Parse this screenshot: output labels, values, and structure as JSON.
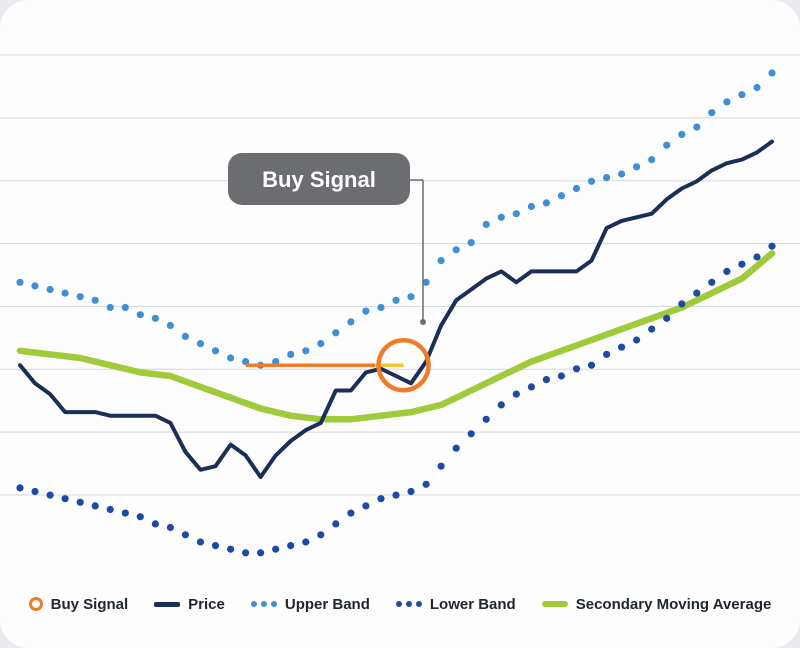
{
  "chart_data": {
    "type": "line",
    "title": "",
    "xlabel": "",
    "ylabel": "",
    "grid": true,
    "legend_position": "bottom",
    "annotation": {
      "label": "Buy Signal",
      "x": 25.5,
      "y": 0.9
    },
    "signal_line": {
      "x_start": 15,
      "x_end": 25.5,
      "y": 0.9
    },
    "series": [
      {
        "name": "Price",
        "style": "solid",
        "color": "#1a2e57",
        "points": [
          [
            0,
            0.9
          ],
          [
            1,
            0.4
          ],
          [
            2,
            0.1
          ],
          [
            3,
            -0.4
          ],
          [
            4,
            -0.4
          ],
          [
            5,
            -0.4
          ],
          [
            6,
            -0.5
          ],
          [
            7,
            -0.5
          ],
          [
            8,
            -0.5
          ],
          [
            9,
            -0.5
          ],
          [
            10,
            -0.7
          ],
          [
            11,
            -1.5
          ],
          [
            12,
            -2.0
          ],
          [
            13,
            -1.9
          ],
          [
            14,
            -1.3
          ],
          [
            15,
            -1.6
          ],
          [
            16,
            -2.2
          ],
          [
            17,
            -1.6
          ],
          [
            18,
            -1.2
          ],
          [
            19,
            -0.9
          ],
          [
            20,
            -0.7
          ],
          [
            21,
            0.2
          ],
          [
            22,
            0.2
          ],
          [
            23,
            0.7
          ],
          [
            24,
            0.8
          ],
          [
            25,
            0.6
          ],
          [
            26,
            0.4
          ],
          [
            27,
            1.0
          ],
          [
            28,
            2.0
          ],
          [
            29,
            2.7
          ],
          [
            30,
            3.0
          ],
          [
            31,
            3.3
          ],
          [
            32,
            3.5
          ],
          [
            33,
            3.2
          ],
          [
            34,
            3.5
          ],
          [
            35,
            3.5
          ],
          [
            36,
            3.5
          ],
          [
            37,
            3.5
          ],
          [
            38,
            3.8
          ],
          [
            39,
            4.7
          ],
          [
            40,
            4.9
          ],
          [
            41,
            5.0
          ],
          [
            42,
            5.1
          ],
          [
            43,
            5.5
          ],
          [
            44,
            5.8
          ],
          [
            45,
            6.0
          ],
          [
            46,
            6.3
          ],
          [
            47,
            6.5
          ],
          [
            48,
            6.6
          ],
          [
            49,
            6.8
          ],
          [
            50,
            7.1
          ]
        ]
      },
      {
        "name": "Upper Band",
        "style": "dotted",
        "color": "#3e8fd6",
        "points": [
          [
            0,
            3.2
          ],
          [
            1,
            3.1
          ],
          [
            2,
            3.0
          ],
          [
            3,
            2.9
          ],
          [
            4,
            2.8
          ],
          [
            5,
            2.7
          ],
          [
            6,
            2.5
          ],
          [
            7,
            2.5
          ],
          [
            8,
            2.3
          ],
          [
            9,
            2.2
          ],
          [
            10,
            2.0
          ],
          [
            11,
            1.7
          ],
          [
            12,
            1.5
          ],
          [
            13,
            1.3
          ],
          [
            14,
            1.1
          ],
          [
            15,
            1.0
          ],
          [
            16,
            0.9
          ],
          [
            17,
            1.0
          ],
          [
            18,
            1.2
          ],
          [
            19,
            1.3
          ],
          [
            20,
            1.5
          ],
          [
            21,
            1.8
          ],
          [
            22,
            2.1
          ],
          [
            23,
            2.4
          ],
          [
            24,
            2.5
          ],
          [
            25,
            2.7
          ],
          [
            26,
            2.8
          ],
          [
            27,
            3.2
          ],
          [
            28,
            3.8
          ],
          [
            29,
            4.1
          ],
          [
            30,
            4.3
          ],
          [
            31,
            4.8
          ],
          [
            32,
            5.0
          ],
          [
            33,
            5.1
          ],
          [
            34,
            5.3
          ],
          [
            35,
            5.4
          ],
          [
            36,
            5.6
          ],
          [
            37,
            5.8
          ],
          [
            38,
            6.0
          ],
          [
            39,
            6.1
          ],
          [
            40,
            6.2
          ],
          [
            41,
            6.4
          ],
          [
            42,
            6.6
          ],
          [
            43,
            7.0
          ],
          [
            44,
            7.3
          ],
          [
            45,
            7.5
          ],
          [
            46,
            7.9
          ],
          [
            47,
            8.2
          ],
          [
            48,
            8.4
          ],
          [
            49,
            8.6
          ],
          [
            50,
            9.0
          ]
        ]
      },
      {
        "name": "Lower Band",
        "style": "dotted",
        "color": "#1f4aa3",
        "points": [
          [
            0,
            -2.5
          ],
          [
            1,
            -2.6
          ],
          [
            2,
            -2.7
          ],
          [
            3,
            -2.8
          ],
          [
            4,
            -2.9
          ],
          [
            5,
            -3.0
          ],
          [
            6,
            -3.1
          ],
          [
            7,
            -3.2
          ],
          [
            8,
            -3.3
          ],
          [
            9,
            -3.5
          ],
          [
            10,
            -3.6
          ],
          [
            11,
            -3.8
          ],
          [
            12,
            -4.0
          ],
          [
            13,
            -4.1
          ],
          [
            14,
            -4.2
          ],
          [
            15,
            -4.3
          ],
          [
            16,
            -4.3
          ],
          [
            17,
            -4.2
          ],
          [
            18,
            -4.1
          ],
          [
            19,
            -4.0
          ],
          [
            20,
            -3.8
          ],
          [
            21,
            -3.5
          ],
          [
            22,
            -3.2
          ],
          [
            23,
            -3.0
          ],
          [
            24,
            -2.8
          ],
          [
            25,
            -2.7
          ],
          [
            26,
            -2.6
          ],
          [
            27,
            -2.4
          ],
          [
            28,
            -1.9
          ],
          [
            29,
            -1.4
          ],
          [
            30,
            -1.0
          ],
          [
            31,
            -0.6
          ],
          [
            32,
            -0.2
          ],
          [
            33,
            0.1
          ],
          [
            34,
            0.3
          ],
          [
            35,
            0.5
          ],
          [
            36,
            0.6
          ],
          [
            37,
            0.8
          ],
          [
            38,
            0.9
          ],
          [
            39,
            1.2
          ],
          [
            40,
            1.4
          ],
          [
            41,
            1.6
          ],
          [
            42,
            1.9
          ],
          [
            43,
            2.2
          ],
          [
            44,
            2.6
          ],
          [
            45,
            2.9
          ],
          [
            46,
            3.2
          ],
          [
            47,
            3.5
          ],
          [
            48,
            3.7
          ],
          [
            49,
            3.9
          ],
          [
            50,
            4.2
          ]
        ]
      },
      {
        "name": "Secondary Moving Average",
        "style": "solid",
        "color": "#9fcb3b",
        "points": [
          [
            0,
            1.3
          ],
          [
            2,
            1.2
          ],
          [
            4,
            1.1
          ],
          [
            6,
            0.9
          ],
          [
            8,
            0.7
          ],
          [
            10,
            0.6
          ],
          [
            12,
            0.3
          ],
          [
            14,
            0.0
          ],
          [
            16,
            -0.3
          ],
          [
            18,
            -0.5
          ],
          [
            20,
            -0.6
          ],
          [
            22,
            -0.6
          ],
          [
            24,
            -0.5
          ],
          [
            26,
            -0.4
          ],
          [
            28,
            -0.2
          ],
          [
            30,
            0.2
          ],
          [
            32,
            0.6
          ],
          [
            34,
            1.0
          ],
          [
            36,
            1.3
          ],
          [
            38,
            1.6
          ],
          [
            40,
            1.9
          ],
          [
            42,
            2.2
          ],
          [
            44,
            2.5
          ],
          [
            46,
            2.9
          ],
          [
            48,
            3.3
          ],
          [
            50,
            4.0
          ]
        ]
      }
    ]
  },
  "legend": {
    "items": [
      {
        "key": "buy",
        "label": "Buy Signal"
      },
      {
        "key": "price",
        "label": "Price"
      },
      {
        "key": "upper",
        "label": "Upper Band"
      },
      {
        "key": "lower",
        "label": "Lower Band"
      },
      {
        "key": "sma",
        "label": "Secondary Moving Average"
      }
    ]
  },
  "colors": {
    "buy_signal": "#ef7c2a",
    "signal_fill": "#f7c43a",
    "callout_bg": "#6b6d70",
    "grid": "#d3d6db"
  }
}
